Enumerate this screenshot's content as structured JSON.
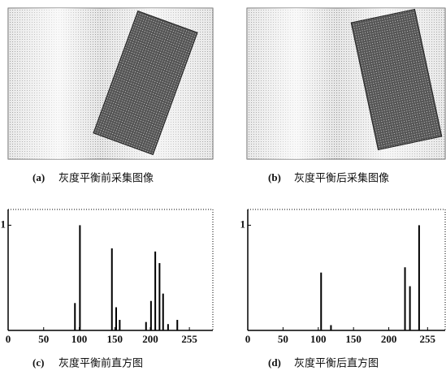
{
  "figures": [
    {
      "label": "(a)",
      "caption": "灰度平衡前采集图像"
    },
    {
      "label": "(b)",
      "caption": "灰度平衡后采集图像"
    }
  ],
  "chart_data": [
    {
      "type": "stem",
      "label": "(c)",
      "caption": "灰度平衡前直方图",
      "color": "#000000",
      "x": [
        94,
        101,
        146,
        152,
        157,
        194,
        201,
        207,
        213,
        218,
        225,
        238
      ],
      "values": [
        0.26,
        1.0,
        0.78,
        0.22,
        0.1,
        0.08,
        0.28,
        0.75,
        0.64,
        0.35,
        0.06,
        0.1
      ],
      "xlim": [
        0,
        288
      ],
      "ylim": [
        0,
        1.15
      ],
      "xticks": [
        0,
        50,
        100,
        150,
        200,
        255
      ],
      "yticks": [
        1
      ]
    },
    {
      "type": "stem",
      "label": "(d)",
      "caption": "灰度平衡后直方图",
      "color": "#000000",
      "x": [
        104,
        118,
        223,
        230,
        243
      ],
      "values": [
        0.55,
        0.05,
        0.6,
        0.42,
        1.0
      ],
      "xlim": [
        0,
        280
      ],
      "ylim": [
        0,
        1.15
      ],
      "xticks": [
        0,
        50,
        100,
        150,
        200,
        255
      ],
      "yticks": [
        1
      ]
    }
  ]
}
